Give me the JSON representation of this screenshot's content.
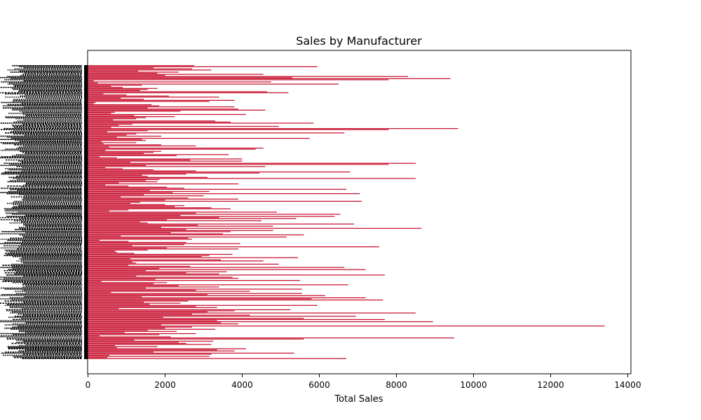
{
  "chart_data": {
    "type": "bar",
    "orientation": "horizontal",
    "title": "Sales by Manufacturer",
    "xlabel": "Total Sales",
    "ylabel": "",
    "xlim": [
      0,
      14000
    ],
    "xticks": [
      0,
      2000,
      4000,
      6000,
      8000,
      10000,
      12000,
      14000
    ],
    "grid": false,
    "bar_color": "#c8102e",
    "categories_legible": false,
    "values": [
      2750,
      5950,
      1700,
      2700,
      3200,
      1300,
      2350,
      1800,
      4550,
      2000,
      8300,
      5300,
      9400,
      7800,
      150,
      4750,
      250,
      6500,
      1400,
      600,
      900,
      1800,
      1550,
      1350,
      4650,
      5200,
      400,
      1000,
      2100,
      3400,
      850,
      1450,
      3800,
      3150,
      200,
      150,
      1650,
      1850,
      3800,
      1550,
      3900,
      4600,
      2400,
      700,
      600,
      4100,
      1200,
      2250,
      1500,
      1250,
      650,
      3300,
      3700,
      5850,
      1150,
      800,
      4950,
      600,
      9600,
      7800,
      1550,
      500,
      6650,
      1250,
      1000,
      1900,
      750,
      5750,
      1400,
      1500,
      350,
      1250,
      400,
      1900,
      2800,
      550,
      4550,
      4350,
      450,
      1900,
      1700,
      1450,
      3650,
      2300,
      300,
      750,
      4000,
      2650,
      4000,
      1100,
      8500,
      7800,
      1500,
      4600,
      450,
      900,
      1700,
      2800,
      6800,
      4450,
      2550,
      1400,
      1550,
      3100,
      8500,
      1850,
      1500,
      1800,
      800,
      3900,
      450,
      1050,
      2050,
      2500,
      6700,
      1600,
      3150,
      2200,
      7050,
      1450,
      3000,
      850,
      2600,
      3900,
      2000,
      7100,
      1350,
      1100,
      2000,
      2500,
      2250,
      3200,
      3700,
      1050,
      550,
      4900,
      2800,
      6550,
      2400,
      6400,
      3400,
      5400,
      2050,
      4500,
      1350,
      1550,
      6900,
      2850,
      4800,
      1900,
      8650,
      2550,
      4800,
      3700,
      2150,
      3500,
      5600,
      850,
      5150,
      2600,
      2700,
      300,
      1050,
      2550,
      3950,
      2500,
      1150,
      7550,
      2050,
      3900,
      1550,
      700,
      750,
      1200,
      3750,
      3150,
      2950,
      5450,
      1100,
      3450,
      4550,
      1150,
      1250,
      4950,
      1050,
      2650,
      6650,
      1850,
      7200,
      1500,
      3600,
      2550,
      3400,
      7700,
      1250,
      3750,
      3900,
      1750,
      5500,
      350,
      2050,
      1700,
      6750,
      2350,
      3400,
      1500,
      5550,
      2800,
      4200,
      600,
      5550,
      3100,
      6150,
      1400,
      7200,
      5800,
      7650,
      2600,
      1450,
      2400,
      1600,
      5950,
      2800,
      3350,
      800,
      5250,
      3800,
      3100,
      8500,
      2700,
      4200,
      6950,
      1950,
      5600,
      7700,
      3350,
      8950,
      3450,
      3900,
      1900,
      13400,
      2700,
      2000,
      3300,
      1550,
      2300,
      950,
      2800,
      1850,
      300,
      2150,
      9500,
      5600,
      1200,
      3250,
      2350,
      2550,
      3200,
      700,
      1800,
      750,
      4100,
      3350,
      3800,
      1700,
      5350,
      3200,
      550,
      3150,
      500,
      6700
    ]
  }
}
